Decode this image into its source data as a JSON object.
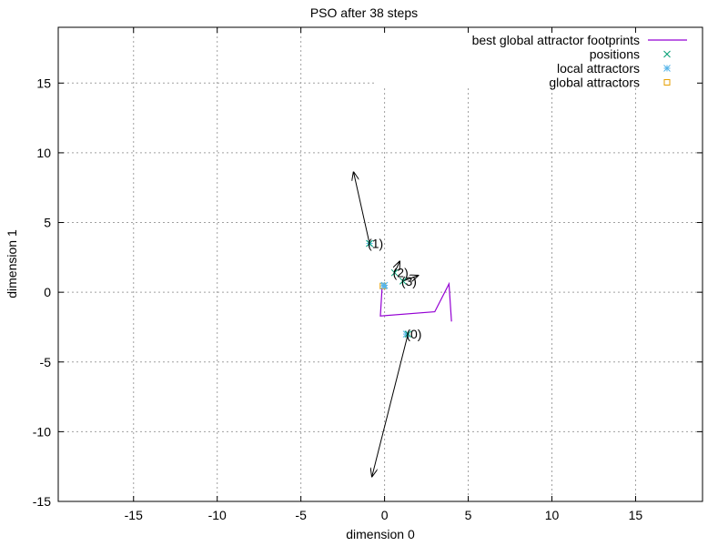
{
  "chart_data": {
    "type": "scatter",
    "title": "PSO after 38 steps",
    "xlabel": "dimension 0",
    "ylabel": "dimension 1",
    "xlim": [
      -19.5,
      19.0
    ],
    "ylim": [
      -15,
      19.0
    ],
    "xticks": [
      -15,
      -10,
      -5,
      0,
      5,
      10,
      15
    ],
    "yticks": [
      -15,
      -10,
      -5,
      0,
      5,
      10,
      15
    ],
    "grid": true,
    "legend_position": "top-right",
    "colors": {
      "footprints": "#9400d3",
      "positions": "#009e73",
      "local_attractors": "#56b4e9",
      "global_attractors": "#e69f00",
      "velocity": "#000000",
      "grid": "#a0a0a0"
    },
    "legend": [
      {
        "label": "best global attractor footprints",
        "marker": "line",
        "color": "#9400d3"
      },
      {
        "label": "positions",
        "marker": "x",
        "color": "#009e73"
      },
      {
        "label": "local attractors",
        "marker": "star",
        "color": "#56b4e9"
      },
      {
        "label": "global attractors",
        "marker": "square",
        "color": "#e69f00"
      }
    ],
    "footprints": [
      [
        4.0,
        -2.1
      ],
      [
        3.85,
        0.6
      ],
      [
        3.0,
        -1.4
      ],
      [
        -0.25,
        -1.7
      ],
      [
        -0.15,
        0.3
      ]
    ],
    "positions": [
      {
        "label": "(0)",
        "x": 1.4,
        "y": -3.0
      },
      {
        "label": "(1)",
        "x": -0.9,
        "y": 3.5
      },
      {
        "label": "(2)",
        "x": 0.6,
        "y": 1.4
      },
      {
        "label": "(3)",
        "x": 1.1,
        "y": 0.8
      }
    ],
    "local_attractors": [
      {
        "x": 1.3,
        "y": -3.0
      },
      {
        "x": -0.9,
        "y": 3.5
      },
      {
        "x": 0.0,
        "y": 0.5
      },
      {
        "x": -0.05,
        "y": 0.45
      }
    ],
    "global_attractors": [
      {
        "x": -0.1,
        "y": 0.45
      }
    ],
    "velocities": [
      {
        "from": [
          1.4,
          -3.0
        ],
        "to": [
          -0.75,
          -13.2
        ]
      },
      {
        "from": [
          -0.9,
          3.5
        ],
        "to": [
          -1.85,
          8.6
        ]
      },
      {
        "from": [
          0.6,
          1.4
        ],
        "to": [
          0.9,
          2.2
        ]
      },
      {
        "from": [
          1.1,
          0.8
        ],
        "to": [
          2.0,
          1.2
        ]
      }
    ]
  }
}
